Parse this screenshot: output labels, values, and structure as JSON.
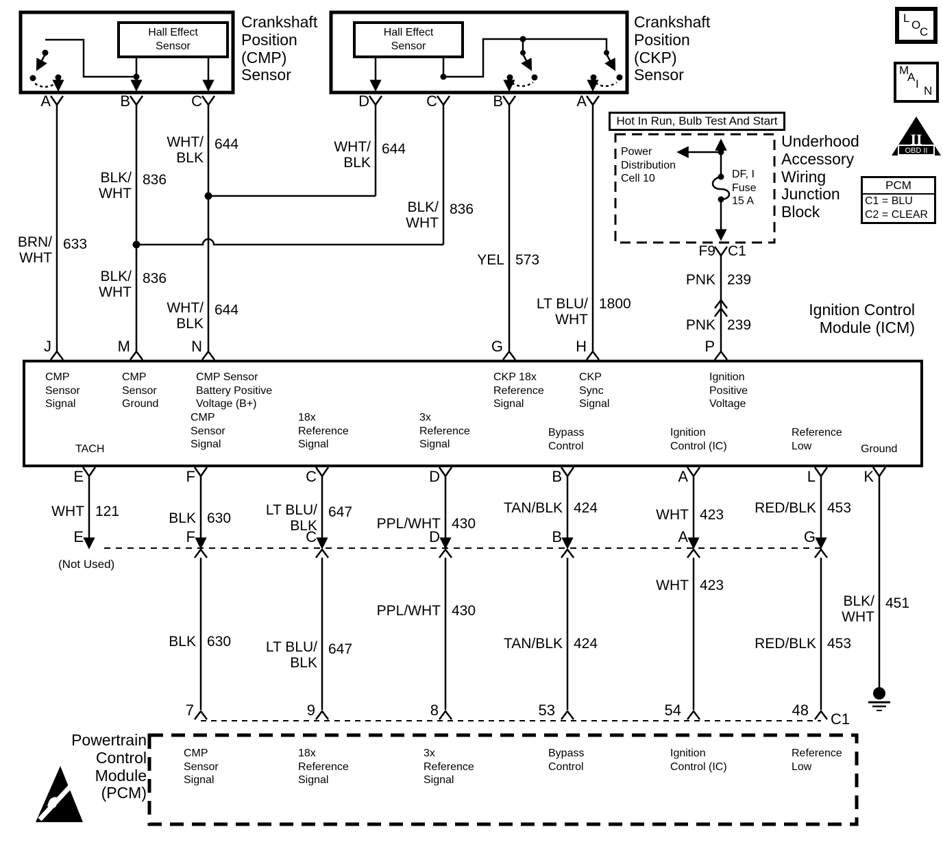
{
  "cmp_sensor": {
    "title": "Crankshaft Position (CMP) Sensor",
    "hall": "Hall Effect\nSensor",
    "pin_a": "A",
    "pin_b": "B",
    "pin_c": "C"
  },
  "ckp_sensor": {
    "title": "Crankshaft Position (CKP) Sensor",
    "hall": "Hall Effect\nSensor",
    "pin_d": "D",
    "pin_c": "C",
    "pin_b": "B",
    "pin_a": "A"
  },
  "power": {
    "banner": "Hot In Run, Bulb Test And Start",
    "cell": "Power\nDistribution\nCell 10",
    "fuse": "DF, I\nFuse\n15 A",
    "junction": "Underhood Accessory Wiring Junction Block",
    "pin_f9": "F9",
    "pin_c1": "C1"
  },
  "badges": {
    "loc": "LOC",
    "main": "MAIN",
    "obd_numeral": "II",
    "obd_label": "OBD II",
    "pcm_legend_title": "PCM",
    "pcm_legend_c1": "C1 = BLU",
    "pcm_legend_c2": "C2 = CLEAR"
  },
  "wires": {
    "brn_wht": {
      "color": "BRN/\nWHT",
      "circuit": "633"
    },
    "blk_wht_836_1": {
      "color": "BLK/\nWHT",
      "circuit": "836"
    },
    "blk_wht_836_2": {
      "color": "BLK/\nWHT",
      "circuit": "836"
    },
    "blk_wht_836_3": {
      "color": "BLK/\nWHT",
      "circuit": "836"
    },
    "wht_blk_644_1": {
      "color": "WHT/\nBLK",
      "circuit": "644"
    },
    "wht_blk_644_2": {
      "color": "WHT/\nBLK",
      "circuit": "644"
    },
    "wht_blk_644_3": {
      "color": "WHT/\nBLK",
      "circuit": "644"
    },
    "yel_573": {
      "color": "YEL",
      "circuit": "573"
    },
    "lt_blu_wht_1800": {
      "color": "LT BLU/\nWHT",
      "circuit": "1800"
    },
    "pnk_239_1": {
      "color": "PNK",
      "circuit": "239"
    },
    "pnk_239_2": {
      "color": "PNK",
      "circuit": "239"
    },
    "wht_121": {
      "color": "WHT",
      "circuit": "121"
    },
    "blk_630_1": {
      "color": "BLK",
      "circuit": "630"
    },
    "blk_630_2": {
      "color": "BLK",
      "circuit": "630"
    },
    "lt_blu_blk_647_1": {
      "color": "LT BLU/\nBLK",
      "circuit": "647"
    },
    "lt_blu_blk_647_2": {
      "color": "LT BLU/\nBLK",
      "circuit": "647"
    },
    "ppl_wht_430_1": {
      "color": "PPL/WHT",
      "circuit": "430"
    },
    "ppl_wht_430_2": {
      "color": "PPL/WHT",
      "circuit": "430"
    },
    "tan_blk_424_1": {
      "color": "TAN/BLK",
      "circuit": "424"
    },
    "tan_blk_424_2": {
      "color": "TAN/BLK",
      "circuit": "424"
    },
    "wht_423_1": {
      "color": "WHT",
      "circuit": "423"
    },
    "wht_423_2": {
      "color": "WHT",
      "circuit": "423"
    },
    "red_blk_453_1": {
      "color": "RED/BLK",
      "circuit": "453"
    },
    "red_blk_453_2": {
      "color": "RED/BLK",
      "circuit": "453"
    },
    "blk_wht_451": {
      "color": "BLK/\nWHT",
      "circuit": "451"
    }
  },
  "icm": {
    "title": "Ignition Control Module (ICM)",
    "pins_top": {
      "j": "J",
      "m": "M",
      "n": "N",
      "g": "G",
      "h": "H",
      "p": "P"
    },
    "labels": {
      "cmp_signal": "CMP\nSensor\nSignal",
      "cmp_ground": "CMP\nSensor\nGround",
      "cmp_batt": "CMP Sensor\nBattery Positive\nVoltage (B+)",
      "tach": "TACH",
      "cmp_signal2": "CMP\nSensor\nSignal",
      "ref18": "18x\nReference\nSignal",
      "ref3": "3x\nReference\nSignal",
      "ckp18": "CKP 18x\nReference\nSignal",
      "ckp_sync": "CKP\nSync\nSignal",
      "ign_pos": "Ignition\nPositive\nVoltage",
      "bypass": "Bypass\nControl",
      "ign_ctrl": "Ignition\nControl (IC)",
      "ref_low": "Reference\nLow",
      "ground": "Ground"
    },
    "pins_bottom": {
      "e": "E",
      "f": "F",
      "c": "C",
      "d": "D",
      "b": "B",
      "a": "A",
      "l": "L",
      "k": "K"
    }
  },
  "inline_conn": {
    "letters": {
      "e": "E",
      "f": "F",
      "c": "C",
      "d": "D",
      "b": "B",
      "a": "A",
      "g": "G"
    },
    "not_used": "(Not Used)"
  },
  "pcm": {
    "title": "Powertrain Control Module (PCM)",
    "pins": {
      "p7": "7",
      "p9": "9",
      "p8": "8",
      "p53": "53",
      "p54": "54",
      "p48": "48",
      "c1": "C1"
    },
    "labels": {
      "cmp_signal": "CMP\nSensor\nSignal",
      "ref18": "18x\nReference\nSignal",
      "ref3": "3x\nReference\nSignal",
      "bypass": "Bypass\nControl",
      "ign_ctrl": "Ignition\nControl (IC)",
      "ref_low": "Reference\nLow"
    }
  }
}
